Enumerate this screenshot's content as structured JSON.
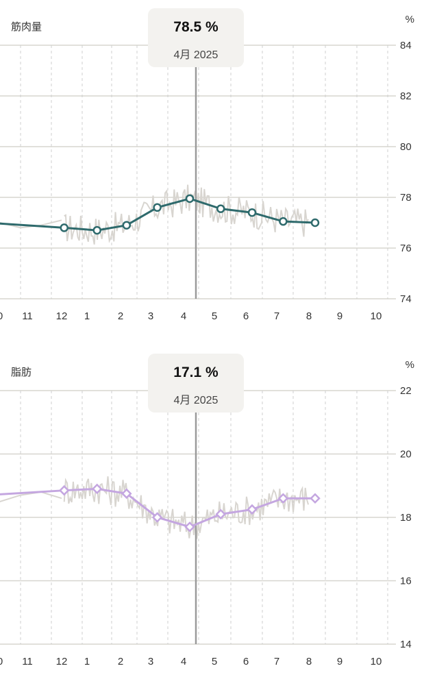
{
  "chart_data": [
    {
      "type": "line",
      "title": "筋肉量",
      "unit": "%",
      "tooltip": {
        "value": "78.5 %",
        "date": "4月 2025"
      },
      "x_ticks": [
        "0",
        "11",
        "12",
        "1",
        "2",
        "3",
        "4",
        "5",
        "6",
        "7",
        "8",
        "9",
        "10"
      ],
      "y_ticks": [
        "84",
        "82",
        "80",
        "78",
        "76",
        "74"
      ],
      "ylim": [
        74,
        84
      ],
      "grid": true,
      "color": "#2e6a6c",
      "marker": "circle",
      "series": [
        {
          "x": [
            -1.0,
            12.1,
            1.3,
            2.2,
            3.2,
            4.2,
            5.2,
            6.2,
            7.2,
            8.2
          ],
          "y": [
            77.0,
            76.8,
            76.7,
            76.9,
            77.6,
            77.95,
            77.55,
            77.4,
            77.05,
            77.0
          ]
        }
      ],
      "trend": {
        "x": [
          -1.0,
          0,
          1,
          2,
          3
        ],
        "y": [
          77.4,
          77.0,
          76.8,
          76.9,
          77.1
        ]
      },
      "raw_color": "#d8d5d0"
    },
    {
      "type": "line",
      "title": "脂肪",
      "unit": "%",
      "tooltip": {
        "value": "17.1 %",
        "date": "4月 2025"
      },
      "x_ticks": [
        "0",
        "11",
        "12",
        "1",
        "2",
        "3",
        "4",
        "5",
        "6",
        "7",
        "8",
        "9",
        "10"
      ],
      "y_ticks": [
        "22",
        "20",
        "18",
        "16",
        "14"
      ],
      "ylim": [
        14,
        22
      ],
      "grid": true,
      "color": "#c4a6e0",
      "marker": "diamond",
      "series": [
        {
          "x": [
            -1.0,
            12.1,
            1.3,
            2.2,
            3.2,
            4.2,
            5.2,
            6.2,
            7.2,
            8.2
          ],
          "y": [
            18.7,
            18.85,
            18.9,
            18.75,
            18.0,
            17.7,
            18.1,
            18.25,
            18.6,
            18.6
          ]
        }
      ],
      "trend": {
        "x": [
          -1.0,
          0,
          1,
          2,
          3
        ],
        "y": [
          18.3,
          18.5,
          18.7,
          18.8,
          18.6
        ]
      },
      "raw_color": "#d8d5d0"
    }
  ]
}
